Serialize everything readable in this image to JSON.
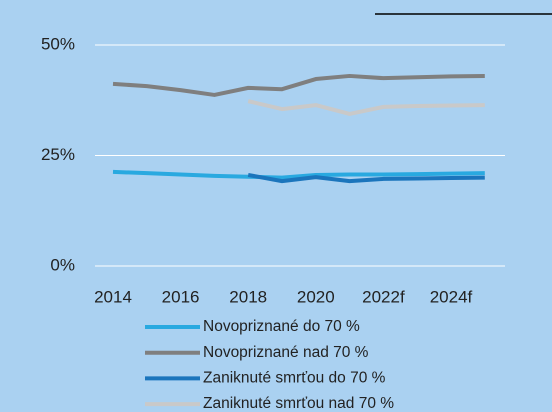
{
  "chart_data": {
    "type": "line",
    "categories": [
      "2014",
      null,
      "2016",
      null,
      "2018",
      null,
      "2020",
      null,
      "2022f",
      null,
      "2024f",
      null
    ],
    "ylim": [
      0,
      50
    ],
    "yticks": [
      {
        "value": 0,
        "label": "0%"
      },
      {
        "value": 25,
        "label": "25%"
      },
      {
        "value": 50,
        "label": "50%"
      }
    ],
    "grid": true,
    "legend": "bottom",
    "series": [
      {
        "name": "Novopriznané do 70  %",
        "color": "#29a9e0",
        "values": [
          21.3,
          21.0,
          20.7,
          20.4,
          20.2,
          20.0,
          20.6,
          20.7,
          20.7,
          20.8,
          20.9,
          21.0
        ]
      },
      {
        "name": "Novopriznané nad 70 %",
        "color": "#7f7f7f",
        "values": [
          41.2,
          40.7,
          39.8,
          38.7,
          40.3,
          40.0,
          42.3,
          43.0,
          42.5,
          42.7,
          42.9,
          43.0
        ]
      },
      {
        "name": "Zaniknuté smrťou do 70 %",
        "color": "#1b75bc",
        "values": [
          null,
          null,
          null,
          null,
          20.6,
          19.2,
          20.1,
          19.2,
          19.7,
          19.8,
          19.9,
          20.0
        ]
      },
      {
        "name": "Zaniknuté smrťou nad 70 %",
        "color": "#c9c9c9",
        "values": [
          null,
          null,
          null,
          null,
          37.3,
          35.5,
          36.4,
          34.4,
          36.0,
          36.2,
          36.3,
          36.4
        ]
      }
    ]
  }
}
